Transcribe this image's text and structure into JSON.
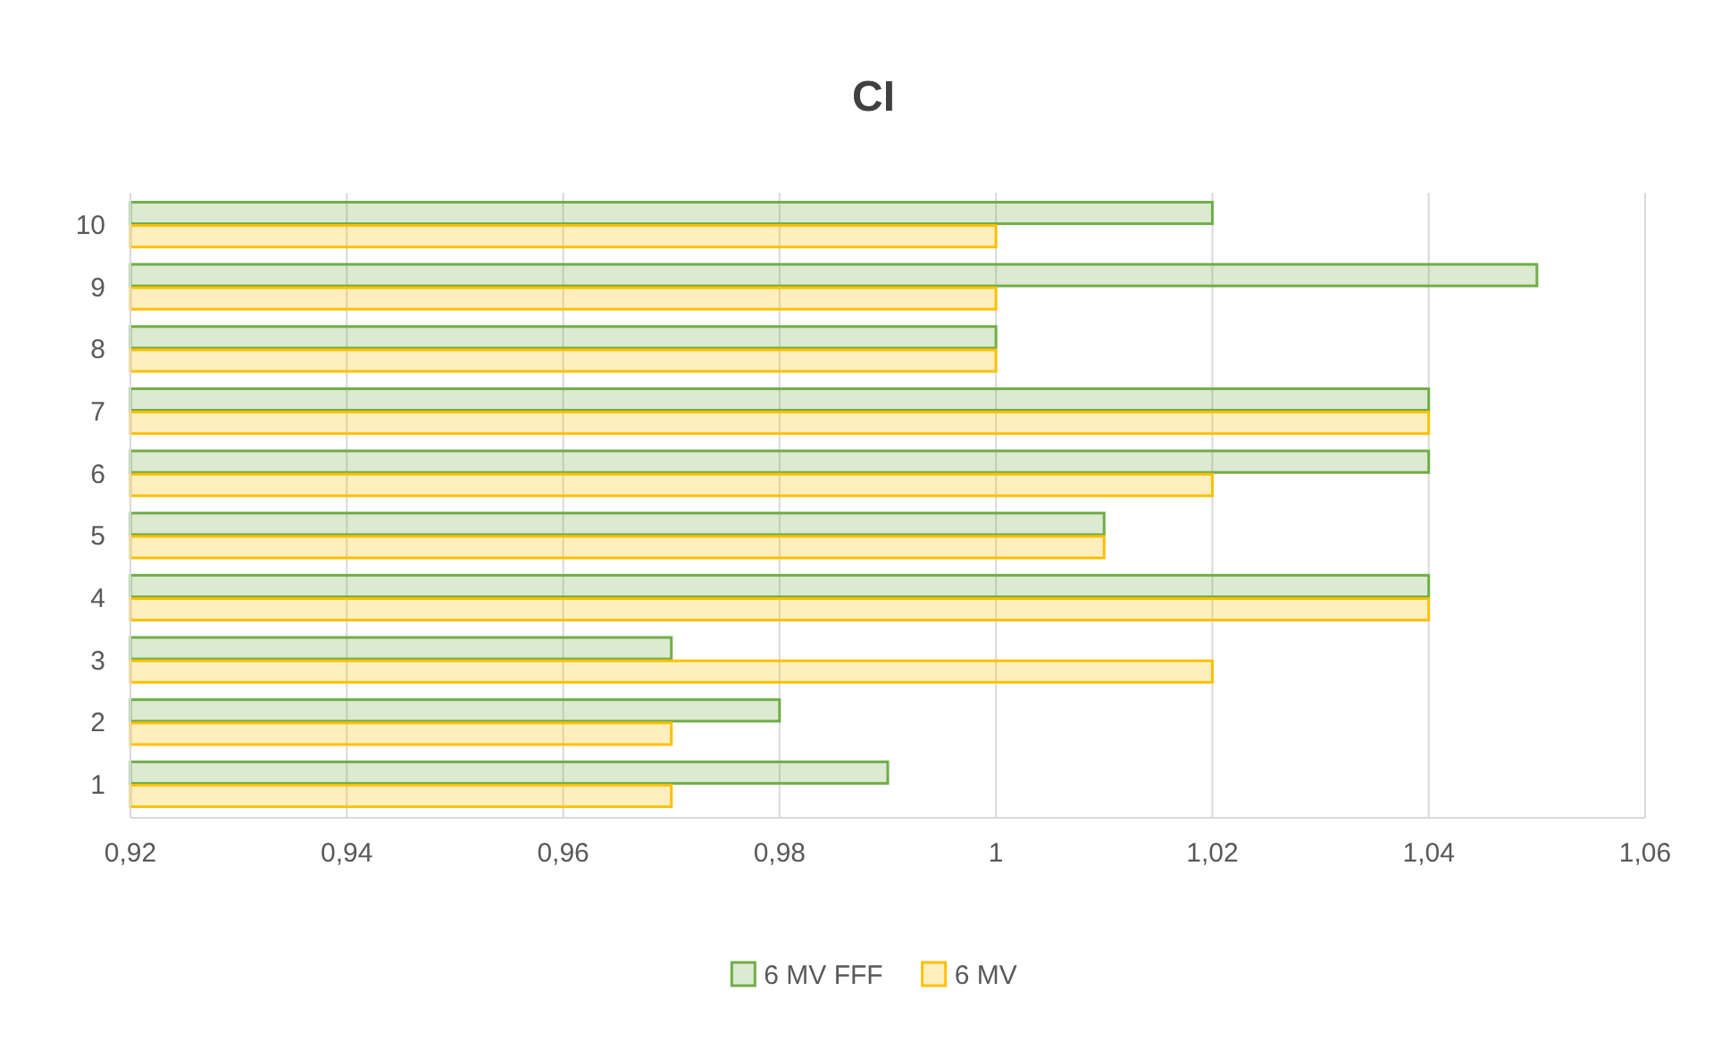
{
  "chart_data": {
    "type": "bar",
    "title": "CI",
    "orientation": "horizontal",
    "categories": [
      "10",
      "9",
      "8",
      "7",
      "6",
      "5",
      "4",
      "3",
      "2",
      "1"
    ],
    "series": [
      {
        "name": "6 MV FFF",
        "color": "#70ad47",
        "values": [
          1.02,
          1.05,
          1.0,
          1.04,
          1.04,
          1.01,
          1.04,
          0.97,
          0.98,
          0.99
        ]
      },
      {
        "name": "6 MV",
        "color": "#ffc000",
        "values": [
          1.0,
          1.0,
          1.0,
          1.04,
          1.02,
          1.01,
          1.04,
          1.02,
          0.97,
          0.97
        ]
      }
    ],
    "xlim": [
      0.92,
      1.06
    ],
    "xticks": [
      {
        "value": 0.92,
        "label": "0,92"
      },
      {
        "value": 0.94,
        "label": "0,94"
      },
      {
        "value": 0.96,
        "label": "0,96"
      },
      {
        "value": 0.98,
        "label": "0,98"
      },
      1,
      {
        "value": 1.02,
        "label": "1,02"
      },
      {
        "value": 1.04,
        "label": "1,04"
      },
      {
        "value": 1.06,
        "label": "1,06"
      }
    ],
    "grid": "x",
    "legend": "bottom"
  }
}
